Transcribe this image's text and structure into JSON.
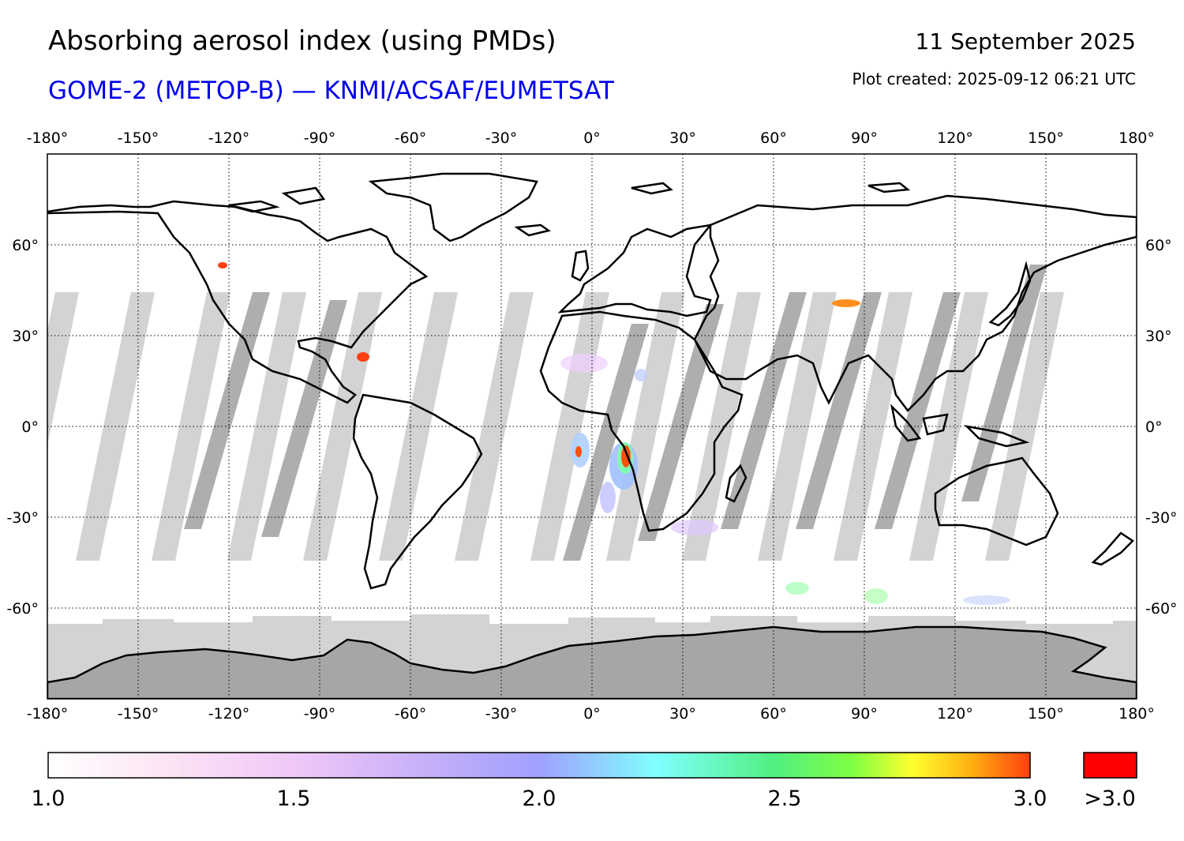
{
  "header": {
    "title": "Absorbing aerosol index (using PMDs)",
    "subtitle": "GOME-2 (METOP-B) — KNMI/ACSAF/EUMETSAT",
    "date": "11 September 2025",
    "plot_created": "Plot created: 2025-09-12 06:21 UTC"
  },
  "map": {
    "projection": "equirectangular",
    "lon_range": [
      -180,
      180
    ],
    "lat_range": [
      -90,
      90
    ],
    "lon_ticks": [
      "-180°",
      "-150°",
      "-120°",
      "-90°",
      "-60°",
      "-30°",
      "0°",
      "30°",
      "60°",
      "90°",
      "120°",
      "150°",
      "180°"
    ],
    "lat_ticks": [
      "60°",
      "30°",
      "0°",
      "-30°",
      "-60°"
    ],
    "gridlines": true,
    "colors": {
      "no_data_dark": "#a0a0a0",
      "no_data_light": "#d3d3d3",
      "coastline": "#000000",
      "gridline": "#000000"
    }
  },
  "colorbar": {
    "ticks": [
      "1.0",
      "1.5",
      "2.0",
      "2.5",
      "3.0"
    ],
    "overflow_label": ">3.0",
    "range": [
      1.0,
      3.0
    ],
    "overflow_color": "#ff0000"
  }
}
